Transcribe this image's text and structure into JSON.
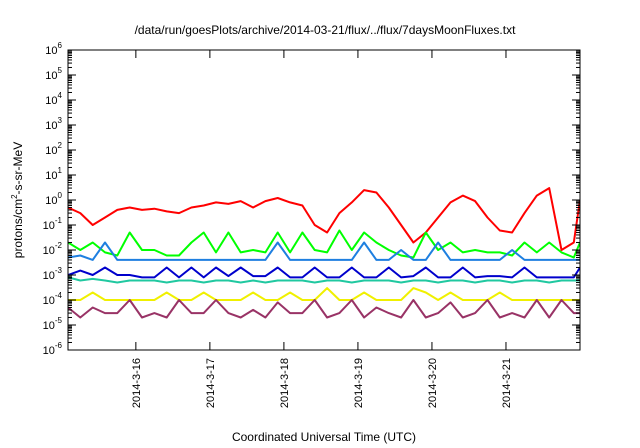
{
  "chart_data": {
    "type": "line",
    "title": "/data/run/goesPlots/archive/2014-03-21/flux/../flux/7daysMoonFluxes.txt",
    "xlabel": "Coordinated Universal Time (UTC)",
    "ylabel": "protons/cm2-s-sr-MeV",
    "x_scale": "time",
    "x_range": [
      "2014-03-15 02:00",
      "2014-03-22 00:00"
    ],
    "y_scale": "log",
    "ylim": [
      1e-06,
      1000000.0
    ],
    "y_tick_labels": [
      "10-6",
      "10-5",
      "10-4",
      "10-3",
      "10-2",
      "10-1",
      "100",
      "101",
      "102",
      "103",
      "104",
      "105",
      "106"
    ],
    "x_tick_labels": [
      "2014-3-16",
      "2014-3-17",
      "2014-3-18",
      "2014-3-19",
      "2014-3-20",
      "2014-3-21"
    ],
    "x_ticks": [
      "2014-03-16 00:00",
      "2014-03-17 00:00",
      "2014-03-18 00:00",
      "2014-03-19 00:00",
      "2014-03-20 00:00",
      "2014-03-21 00:00"
    ],
    "grid": false,
    "legend": "none",
    "series": [
      {
        "color": "#ff0000",
        "x": [
          "2014-03-15 02:00",
          "2014-03-15 06:00",
          "2014-03-15 10:00",
          "2014-03-15 14:00",
          "2014-03-15 18:00",
          "2014-03-15 22:00",
          "2014-03-16 02:00",
          "2014-03-16 06:00",
          "2014-03-16 10:00",
          "2014-03-16 14:00",
          "2014-03-16 18:00",
          "2014-03-16 22:00",
          "2014-03-17 02:00",
          "2014-03-17 06:00",
          "2014-03-17 10:00",
          "2014-03-17 14:00",
          "2014-03-17 18:00",
          "2014-03-17 22:00",
          "2014-03-18 02:00",
          "2014-03-18 06:00",
          "2014-03-18 10:00",
          "2014-03-18 14:00",
          "2014-03-18 18:00",
          "2014-03-18 22:00",
          "2014-03-19 02:00",
          "2014-03-19 06:00",
          "2014-03-19 10:00",
          "2014-03-19 14:00",
          "2014-03-19 18:00",
          "2014-03-19 22:00",
          "2014-03-20 02:00",
          "2014-03-20 06:00",
          "2014-03-20 10:00",
          "2014-03-20 14:00",
          "2014-03-20 18:00",
          "2014-03-20 22:00",
          "2014-03-21 02:00",
          "2014-03-21 06:00",
          "2014-03-21 10:00",
          "2014-03-21 14:00",
          "2014-03-21 18:00",
          "2014-03-21 22:00",
          "2014-03-22 00:00"
        ],
        "y": [
          0.5,
          0.3,
          0.1,
          0.2,
          0.4,
          0.5,
          0.4,
          0.45,
          0.35,
          0.3,
          0.5,
          0.6,
          0.8,
          0.7,
          0.9,
          0.5,
          0.9,
          1.2,
          0.8,
          0.6,
          0.1,
          0.05,
          0.3,
          0.8,
          2.5,
          2.0,
          0.5,
          0.1,
          0.02,
          0.05,
          0.2,
          0.8,
          1.5,
          0.9,
          0.2,
          0.06,
          0.05,
          0.3,
          1.5,
          3.0,
          0.01,
          0.02,
          1.0
        ]
      },
      {
        "color": "#00ff00",
        "x": [
          "2014-03-15 02:00",
          "2014-03-15 06:00",
          "2014-03-15 10:00",
          "2014-03-15 14:00",
          "2014-03-15 18:00",
          "2014-03-15 22:00",
          "2014-03-16 02:00",
          "2014-03-16 06:00",
          "2014-03-16 10:00",
          "2014-03-16 14:00",
          "2014-03-16 18:00",
          "2014-03-16 22:00",
          "2014-03-17 02:00",
          "2014-03-17 06:00",
          "2014-03-17 10:00",
          "2014-03-17 14:00",
          "2014-03-17 18:00",
          "2014-03-17 22:00",
          "2014-03-18 02:00",
          "2014-03-18 06:00",
          "2014-03-18 10:00",
          "2014-03-18 14:00",
          "2014-03-18 18:00",
          "2014-03-18 22:00",
          "2014-03-19 02:00",
          "2014-03-19 06:00",
          "2014-03-19 10:00",
          "2014-03-19 14:00",
          "2014-03-19 18:00",
          "2014-03-19 22:00",
          "2014-03-20 02:00",
          "2014-03-20 06:00",
          "2014-03-20 10:00",
          "2014-03-20 14:00",
          "2014-03-20 18:00",
          "2014-03-20 22:00",
          "2014-03-21 02:00",
          "2014-03-21 06:00",
          "2014-03-21 10:00",
          "2014-03-21 14:00",
          "2014-03-21 18:00",
          "2014-03-21 22:00",
          "2014-03-22 00:00"
        ],
        "y": [
          0.02,
          0.01,
          0.02,
          0.008,
          0.006,
          0.05,
          0.01,
          0.01,
          0.006,
          0.006,
          0.02,
          0.05,
          0.008,
          0.05,
          0.008,
          0.01,
          0.008,
          0.05,
          0.008,
          0.05,
          0.01,
          0.008,
          0.06,
          0.01,
          0.05,
          0.02,
          0.01,
          0.006,
          0.005,
          0.05,
          0.01,
          0.02,
          0.008,
          0.01,
          0.008,
          0.008,
          0.006,
          0.02,
          0.008,
          0.02,
          0.008,
          0.005,
          0.02
        ]
      },
      {
        "color": "#1e7fe0",
        "x": [
          "2014-03-15 02:00",
          "2014-03-15 06:00",
          "2014-03-15 10:00",
          "2014-03-15 14:00",
          "2014-03-15 18:00",
          "2014-03-15 22:00",
          "2014-03-16 02:00",
          "2014-03-16 06:00",
          "2014-03-16 10:00",
          "2014-03-16 14:00",
          "2014-03-16 18:00",
          "2014-03-16 22:00",
          "2014-03-17 02:00",
          "2014-03-17 06:00",
          "2014-03-17 10:00",
          "2014-03-17 14:00",
          "2014-03-17 18:00",
          "2014-03-17 22:00",
          "2014-03-18 02:00",
          "2014-03-18 06:00",
          "2014-03-18 10:00",
          "2014-03-18 14:00",
          "2014-03-18 18:00",
          "2014-03-18 22:00",
          "2014-03-19 02:00",
          "2014-03-19 06:00",
          "2014-03-19 10:00",
          "2014-03-19 14:00",
          "2014-03-19 18:00",
          "2014-03-19 22:00",
          "2014-03-20 02:00",
          "2014-03-20 06:00",
          "2014-03-20 10:00",
          "2014-03-20 14:00",
          "2014-03-20 18:00",
          "2014-03-20 22:00",
          "2014-03-21 02:00",
          "2014-03-21 06:00",
          "2014-03-21 10:00",
          "2014-03-21 14:00",
          "2014-03-21 18:00",
          "2014-03-21 22:00",
          "2014-03-22 00:00"
        ],
        "y": [
          0.005,
          0.006,
          0.004,
          0.02,
          0.004,
          0.004,
          0.004,
          0.004,
          0.004,
          0.004,
          0.004,
          0.004,
          0.004,
          0.004,
          0.004,
          0.004,
          0.004,
          0.02,
          0.004,
          0.004,
          0.004,
          0.004,
          0.004,
          0.004,
          0.02,
          0.004,
          0.004,
          0.01,
          0.004,
          0.004,
          0.02,
          0.004,
          0.004,
          0.004,
          0.004,
          0.004,
          0.01,
          0.004,
          0.004,
          0.004,
          0.004,
          0.004,
          0.004
        ]
      },
      {
        "color": "#0000cc",
        "x": [
          "2014-03-15 02:00",
          "2014-03-15 06:00",
          "2014-03-15 10:00",
          "2014-03-15 14:00",
          "2014-03-15 18:00",
          "2014-03-15 22:00",
          "2014-03-16 02:00",
          "2014-03-16 06:00",
          "2014-03-16 10:00",
          "2014-03-16 14:00",
          "2014-03-16 18:00",
          "2014-03-16 22:00",
          "2014-03-17 02:00",
          "2014-03-17 06:00",
          "2014-03-17 10:00",
          "2014-03-17 14:00",
          "2014-03-17 18:00",
          "2014-03-17 22:00",
          "2014-03-18 02:00",
          "2014-03-18 06:00",
          "2014-03-18 10:00",
          "2014-03-18 14:00",
          "2014-03-18 18:00",
          "2014-03-18 22:00",
          "2014-03-19 02:00",
          "2014-03-19 06:00",
          "2014-03-19 10:00",
          "2014-03-19 14:00",
          "2014-03-19 18:00",
          "2014-03-19 22:00",
          "2014-03-20 02:00",
          "2014-03-20 06:00",
          "2014-03-20 10:00",
          "2014-03-20 14:00",
          "2014-03-20 18:00",
          "2014-03-20 22:00",
          "2014-03-21 02:00",
          "2014-03-21 06:00",
          "2014-03-21 10:00",
          "2014-03-21 14:00",
          "2014-03-21 18:00",
          "2014-03-21 22:00",
          "2014-03-22 00:00"
        ],
        "y": [
          0.001,
          0.0015,
          0.001,
          0.002,
          0.001,
          0.001,
          0.0008,
          0.0008,
          0.002,
          0.0008,
          0.002,
          0.0008,
          0.002,
          0.0009,
          0.002,
          0.0009,
          0.0009,
          0.002,
          0.0008,
          0.0008,
          0.002,
          0.0008,
          0.0008,
          0.002,
          0.0008,
          0.0008,
          0.002,
          0.0008,
          0.0009,
          0.002,
          0.0008,
          0.0008,
          0.002,
          0.0008,
          0.0009,
          0.0009,
          0.0008,
          0.002,
          0.0008,
          0.0008,
          0.0008,
          0.0008,
          0.002
        ]
      },
      {
        "color": "#20c8a0",
        "x": [
          "2014-03-15 02:00",
          "2014-03-15 06:00",
          "2014-03-15 10:00",
          "2014-03-15 14:00",
          "2014-03-15 18:00",
          "2014-03-15 22:00",
          "2014-03-16 02:00",
          "2014-03-16 06:00",
          "2014-03-16 10:00",
          "2014-03-16 14:00",
          "2014-03-16 18:00",
          "2014-03-16 22:00",
          "2014-03-17 02:00",
          "2014-03-17 06:00",
          "2014-03-17 10:00",
          "2014-03-17 14:00",
          "2014-03-17 18:00",
          "2014-03-17 22:00",
          "2014-03-18 02:00",
          "2014-03-18 06:00",
          "2014-03-18 10:00",
          "2014-03-18 14:00",
          "2014-03-18 18:00",
          "2014-03-18 22:00",
          "2014-03-19 02:00",
          "2014-03-19 06:00",
          "2014-03-19 10:00",
          "2014-03-19 14:00",
          "2014-03-19 18:00",
          "2014-03-19 22:00",
          "2014-03-20 02:00",
          "2014-03-20 06:00",
          "2014-03-20 10:00",
          "2014-03-20 14:00",
          "2014-03-20 18:00",
          "2014-03-20 22:00",
          "2014-03-21 02:00",
          "2014-03-21 06:00",
          "2014-03-21 10:00",
          "2014-03-21 14:00",
          "2014-03-21 18:00",
          "2014-03-21 22:00",
          "2014-03-22 00:00"
        ],
        "y": [
          0.0008,
          0.0006,
          0.0007,
          0.0006,
          0.0005,
          0.0006,
          0.0006,
          0.0006,
          0.0005,
          0.0006,
          0.0006,
          0.0005,
          0.0006,
          0.0006,
          0.0005,
          0.0006,
          0.0005,
          0.0006,
          0.0006,
          0.0006,
          0.0005,
          0.0006,
          0.0006,
          0.0005,
          0.0006,
          0.0006,
          0.0006,
          0.0005,
          0.0006,
          0.0006,
          0.0005,
          0.0006,
          0.0006,
          0.0005,
          0.0006,
          0.0006,
          0.0005,
          0.0006,
          0.0006,
          0.0005,
          0.0006,
          0.0006,
          0.0006
        ]
      },
      {
        "color": "#f0f000",
        "x": [
          "2014-03-15 02:00",
          "2014-03-15 06:00",
          "2014-03-15 10:00",
          "2014-03-15 14:00",
          "2014-03-15 18:00",
          "2014-03-15 22:00",
          "2014-03-16 02:00",
          "2014-03-16 06:00",
          "2014-03-16 10:00",
          "2014-03-16 14:00",
          "2014-03-16 18:00",
          "2014-03-16 22:00",
          "2014-03-17 02:00",
          "2014-03-17 06:00",
          "2014-03-17 10:00",
          "2014-03-17 14:00",
          "2014-03-17 18:00",
          "2014-03-17 22:00",
          "2014-03-18 02:00",
          "2014-03-18 06:00",
          "2014-03-18 10:00",
          "2014-03-18 14:00",
          "2014-03-18 18:00",
          "2014-03-18 22:00",
          "2014-03-19 02:00",
          "2014-03-19 06:00",
          "2014-03-19 10:00",
          "2014-03-19 14:00",
          "2014-03-19 18:00",
          "2014-03-19 22:00",
          "2014-03-20 02:00",
          "2014-03-20 06:00",
          "2014-03-20 10:00",
          "2014-03-20 14:00",
          "2014-03-20 18:00",
          "2014-03-20 22:00",
          "2014-03-21 02:00",
          "2014-03-21 06:00",
          "2014-03-21 10:00",
          "2014-03-21 14:00",
          "2014-03-21 18:00",
          "2014-03-21 22:00",
          "2014-03-22 00:00"
        ],
        "y": [
          0.0001,
          0.0001,
          0.0002,
          0.0001,
          0.0001,
          0.0001,
          0.0001,
          0.0001,
          0.0002,
          0.0001,
          0.0001,
          0.0002,
          0.0001,
          0.0001,
          0.0001,
          0.0002,
          0.0001,
          0.0001,
          0.0002,
          0.0001,
          0.0001,
          0.0003,
          0.0001,
          0.0001,
          0.0002,
          0.0001,
          0.0001,
          0.0001,
          0.0003,
          0.0002,
          0.0001,
          0.0002,
          0.0001,
          0.0001,
          0.0001,
          0.0002,
          0.0001,
          0.0001,
          0.0001,
          0.0001,
          0.0001,
          0.0001,
          0.0001
        ]
      },
      {
        "color": "#993366",
        "x": [
          "2014-03-15 02:00",
          "2014-03-15 06:00",
          "2014-03-15 10:00",
          "2014-03-15 14:00",
          "2014-03-15 18:00",
          "2014-03-15 22:00",
          "2014-03-16 02:00",
          "2014-03-16 06:00",
          "2014-03-16 10:00",
          "2014-03-16 14:00",
          "2014-03-16 18:00",
          "2014-03-16 22:00",
          "2014-03-17 02:00",
          "2014-03-17 06:00",
          "2014-03-17 10:00",
          "2014-03-17 14:00",
          "2014-03-17 18:00",
          "2014-03-17 22:00",
          "2014-03-18 02:00",
          "2014-03-18 06:00",
          "2014-03-18 10:00",
          "2014-03-18 14:00",
          "2014-03-18 18:00",
          "2014-03-18 22:00",
          "2014-03-19 02:00",
          "2014-03-19 06:00",
          "2014-03-19 10:00",
          "2014-03-19 14:00",
          "2014-03-19 18:00",
          "2014-03-19 22:00",
          "2014-03-20 02:00",
          "2014-03-20 06:00",
          "2014-03-20 10:00",
          "2014-03-20 14:00",
          "2014-03-20 18:00",
          "2014-03-20 22:00",
          "2014-03-21 02:00",
          "2014-03-21 06:00",
          "2014-03-21 10:00",
          "2014-03-21 14:00",
          "2014-03-21 18:00",
          "2014-03-21 22:00",
          "2014-03-22 00:00"
        ],
        "y": [
          5e-05,
          2e-05,
          5e-05,
          3e-05,
          3e-05,
          0.0001,
          2e-05,
          3e-05,
          2e-05,
          0.0001,
          3e-05,
          3e-05,
          0.0001,
          3e-05,
          2e-05,
          4e-05,
          2e-05,
          8e-05,
          3e-05,
          3e-05,
          0.0001,
          2e-05,
          3e-05,
          0.0001,
          2e-05,
          5e-05,
          3e-05,
          2e-05,
          0.0001,
          2e-05,
          3e-05,
          8e-05,
          2e-05,
          3e-05,
          0.0001,
          2e-05,
          3e-05,
          2e-05,
          0.0001,
          2e-05,
          0.0001,
          3e-05,
          3e-05
        ]
      }
    ]
  }
}
